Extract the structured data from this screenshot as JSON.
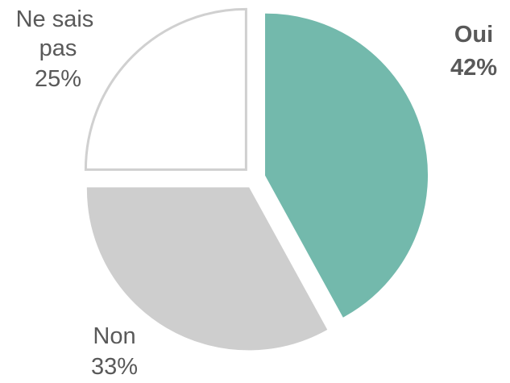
{
  "chart_data": {
    "type": "pie",
    "slices": [
      {
        "label": "Oui",
        "percent_text": "42%",
        "value": 42,
        "color": "#73b9ac",
        "stroke": "#73b9ac",
        "bold": true
      },
      {
        "label": "Non",
        "percent_text": "33%",
        "value": 33,
        "color": "#cecece",
        "stroke": "#cecece",
        "bold": false
      },
      {
        "label": "Ne sais pas",
        "percent_text": "25%",
        "value": 25,
        "color": "#ffffff",
        "stroke": "#d0d0d0",
        "bold": false
      }
    ]
  }
}
